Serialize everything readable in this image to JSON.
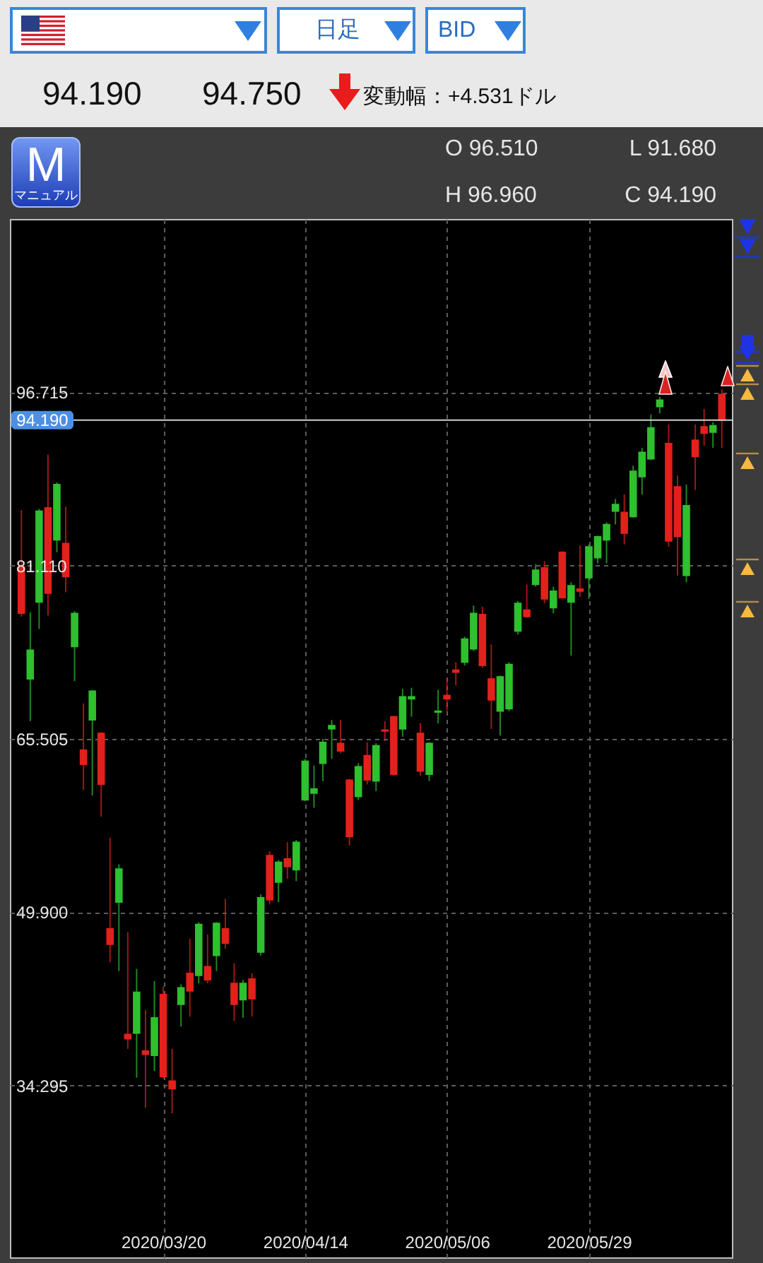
{
  "chart_data": {
    "type": "candlestick",
    "categories": [
      null,
      null,
      null,
      null,
      null,
      null,
      null,
      null,
      null,
      null,
      null,
      null,
      null,
      null,
      null,
      null,
      "2020/03/20",
      null,
      null,
      null,
      null,
      null,
      null,
      null,
      null,
      null,
      null,
      null,
      null,
      null,
      null,
      null,
      "2020/04/14",
      null,
      null,
      null,
      null,
      null,
      null,
      null,
      null,
      null,
      null,
      null,
      null,
      null,
      null,
      null,
      "2020/05/06",
      null,
      null,
      null,
      null,
      null,
      null,
      null,
      null,
      null,
      null,
      null,
      null,
      null,
      null,
      null,
      "2020/05/29",
      null,
      null,
      null,
      null,
      null,
      null,
      null,
      null,
      null,
      null,
      null,
      null,
      null,
      null,
      null
    ],
    "ohlc": [
      [
        81.0,
        86.1,
        76.5,
        76.8
      ],
      [
        70.9,
        76.9,
        67.1,
        73.5
      ],
      [
        77.8,
        86.2,
        75.4,
        86.0
      ],
      [
        86.3,
        91.1,
        76.6,
        78.6
      ],
      [
        83.4,
        88.6,
        82.3,
        88.4
      ],
      [
        83.1,
        86.4,
        78.7,
        80.1
      ],
      [
        73.8,
        77.0,
        70.7,
        76.8
      ],
      [
        64.5,
        68.7,
        60.9,
        63.2
      ],
      [
        67.2,
        69.9,
        60.4,
        69.8
      ],
      [
        66.0,
        66.1,
        58.5,
        61.4
      ],
      [
        48.4,
        56.6,
        45.4,
        47.0
      ],
      [
        50.8,
        54.2,
        44.6,
        53.8
      ],
      [
        38.9,
        48.1,
        37.6,
        38.5
      ],
      [
        39.0,
        44.8,
        35.0,
        42.7
      ],
      [
        37.4,
        41.1,
        32.3,
        37.1
      ],
      [
        37.0,
        43.7,
        35.6,
        40.4
      ],
      [
        42.5,
        43.2,
        34.9,
        35.1
      ],
      [
        34.7,
        37.6,
        31.8,
        34.0
      ],
      [
        41.6,
        43.4,
        39.6,
        43.1
      ],
      [
        44.4,
        47.5,
        40.5,
        42.8
      ],
      [
        44.2,
        49.0,
        43.5,
        48.8
      ],
      [
        45.0,
        47.9,
        43.5,
        43.8
      ],
      [
        46.0,
        49.0,
        44.6,
        48.9
      ],
      [
        48.4,
        51.1,
        46.6,
        47.1
      ],
      [
        43.5,
        45.3,
        40.1,
        41.6
      ],
      [
        42.0,
        43.8,
        40.4,
        43.5
      ],
      [
        43.9,
        44.4,
        40.5,
        42.1
      ],
      [
        46.3,
        51.5,
        46.0,
        51.2
      ],
      [
        55.0,
        55.4,
        50.6,
        51.0
      ],
      [
        52.6,
        54.6,
        50.8,
        54.4
      ],
      [
        54.7,
        56.2,
        52.9,
        54.0
      ],
      [
        53.7,
        56.4,
        52.7,
        56.2
      ],
      [
        60.0,
        63.7,
        59.9,
        63.5
      ],
      [
        60.6,
        63.1,
        59.3,
        61.0
      ],
      [
        63.3,
        65.5,
        61.7,
        65.2
      ],
      [
        66.4,
        67.2,
        63.7,
        66.7
      ],
      [
        65.1,
        67.2,
        64.2,
        64.4
      ],
      [
        61.8,
        61.9,
        55.9,
        56.7
      ],
      [
        60.3,
        63.3,
        60.0,
        63.0
      ],
      [
        64.0,
        65.2,
        61.4,
        61.8
      ],
      [
        61.7,
        65.1,
        60.8,
        64.9
      ],
      [
        66.3,
        67.1,
        65.3,
        66.2
      ],
      [
        67.5,
        67.6,
        62.2,
        62.3
      ],
      [
        66.4,
        70.0,
        65.7,
        69.3
      ],
      [
        69.1,
        70.1,
        67.5,
        69.3
      ],
      [
        66.0,
        66.9,
        62.2,
        62.6
      ],
      [
        62.3,
        65.2,
        61.7,
        65.1
      ],
      [
        67.9,
        69.9,
        66.9,
        68.0
      ],
      [
        69.4,
        70.9,
        68.0,
        69.1
      ],
      [
        71.7,
        72.4,
        70.3,
        71.5
      ],
      [
        72.4,
        74.7,
        72.1,
        74.5
      ],
      [
        73.6,
        77.5,
        73.4,
        76.8
      ],
      [
        76.7,
        77.4,
        71.9,
        72.1
      ],
      [
        70.9,
        74.0,
        66.4,
        69.0
      ],
      [
        68.0,
        71.2,
        65.8,
        71.1
      ],
      [
        68.2,
        72.4,
        68.0,
        72.2
      ],
      [
        75.2,
        77.9,
        74.9,
        77.7
      ],
      [
        77.1,
        79.4,
        76.4,
        76.5
      ],
      [
        79.4,
        81.2,
        79.2,
        80.7
      ],
      [
        80.9,
        81.5,
        77.7,
        78.1
      ],
      [
        77.3,
        79.2,
        76.8,
        78.8
      ],
      [
        82.3,
        82.4,
        78.1,
        78.2
      ],
      [
        77.8,
        79.6,
        73.0,
        79.3
      ],
      [
        79.0,
        82.9,
        78.3,
        78.8
      ],
      [
        80.0,
        83.0,
        78.1,
        82.8
      ],
      [
        81.8,
        83.8,
        81.3,
        83.7
      ],
      [
        83.4,
        85.0,
        81.3,
        84.8
      ],
      [
        86.0,
        87.1,
        84.8,
        86.6
      ],
      [
        85.9,
        87.5,
        83.0,
        84.0
      ],
      [
        85.5,
        90.1,
        85.4,
        89.6
      ],
      [
        89.1,
        91.7,
        87.5,
        91.3
      ],
      [
        90.7,
        94.7,
        90.6,
        93.5
      ],
      [
        95.4,
        96.3,
        94.8,
        96.0
      ],
      [
        92.1,
        93.8,
        82.8,
        83.3
      ],
      [
        88.2,
        89.2,
        80.2,
        83.7
      ],
      [
        80.2,
        88.4,
        79.6,
        86.5
      ],
      [
        92.4,
        93.8,
        87.9,
        90.9
      ],
      [
        93.6,
        95.2,
        91.9,
        93.0
      ],
      [
        93.1,
        94.0,
        91.7,
        93.7
      ],
      [
        96.51,
        96.96,
        91.68,
        94.19
      ]
    ],
    "colors": [
      "#e3211c",
      "#2fbf2f",
      "#2fbf2f",
      "#e3211c",
      "#2fbf2f",
      "#e3211c",
      "#2fbf2f",
      "#e3211c",
      "#2fbf2f",
      "#e3211c",
      "#e3211c",
      "#2fbf2f",
      "#e3211c",
      "#2fbf2f",
      "#e3211c",
      "#2fbf2f",
      "#e3211c",
      "#e3211c",
      "#2fbf2f",
      "#e3211c",
      "#2fbf2f",
      "#e3211c",
      "#2fbf2f",
      "#e3211c",
      "#e3211c",
      "#2fbf2f",
      "#e3211c",
      "#2fbf2f",
      "#e3211c",
      "#2fbf2f",
      "#e3211c",
      "#2fbf2f",
      "#2fbf2f",
      "#2fbf2f",
      "#2fbf2f",
      "#2fbf2f",
      "#e3211c",
      "#e3211c",
      "#2fbf2f",
      "#e3211c",
      "#2fbf2f",
      "#e3211c",
      "#e3211c",
      "#2fbf2f",
      "#2fbf2f",
      "#e3211c",
      "#2fbf2f",
      "#2fbf2f",
      "#e3211c",
      "#e3211c",
      "#2fbf2f",
      "#2fbf2f",
      "#e3211c",
      "#e3211c",
      "#2fbf2f",
      "#2fbf2f",
      "#2fbf2f",
      "#e3211c",
      "#2fbf2f",
      "#e3211c",
      "#2fbf2f",
      "#e3211c",
      "#2fbf2f",
      "#e3211c",
      "#2fbf2f",
      "#2fbf2f",
      "#2fbf2f",
      "#2fbf2f",
      "#e3211c",
      "#2fbf2f",
      "#2fbf2f",
      "#2fbf2f",
      "#2fbf2f",
      "#e3211c",
      "#e3211c",
      "#2fbf2f",
      "#e3211c",
      "#e3211c",
      "#2fbf2f",
      "#e3211c"
    ],
    "ylim": [
      18.7,
      112.3
    ],
    "yticks": [
      34.295,
      {
        "value": 49.9,
        "label": "49.900"
      },
      65.505,
      {
        "value": 81.11,
        "label": "81.110"
      },
      96.715
    ],
    "grid": true,
    "ref_lines": [
      {
        "axis": "y",
        "value": 94.19,
        "label": "94.190",
        "color": "#cfcfcf"
      }
    ],
    "annotations": [
      "日足",
      "BID",
      "94.190",
      "94.750",
      "変動幅：+4.531ドル",
      "O 96.510",
      "H 96.960",
      "L 91.680",
      "C 94.190",
      "M",
      "マニュアル"
    ]
  }
}
